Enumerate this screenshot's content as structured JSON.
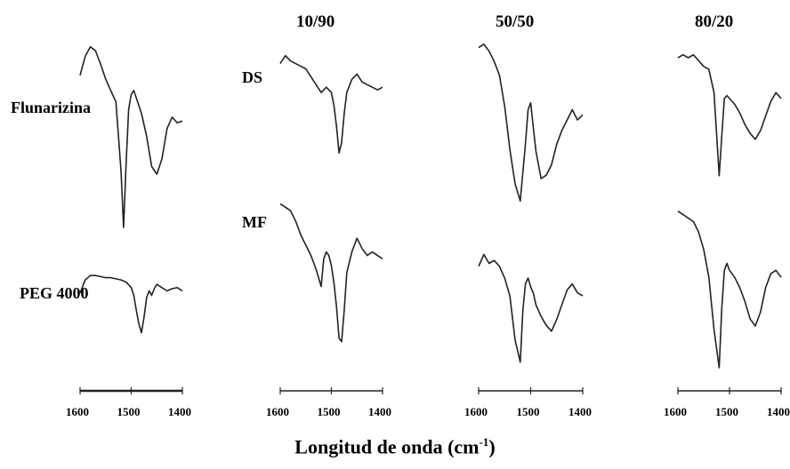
{
  "col_headers": [
    "10/90",
    "50/50",
    "80/20"
  ],
  "row_labels": {
    "flunarizina": "Flunarizina",
    "peg": "PEG 4000",
    "ds": "DS",
    "mf": "MF"
  },
  "x_axis": {
    "title_main": "Longitud de onda (cm",
    "title_exp": "-1",
    "title_close": ")"
  },
  "chart_data": {
    "type": "line",
    "x_axis_title": "Longitud de onda (cm-1)",
    "xlim": [
      1600,
      1400
    ],
    "x_ticks": [
      1600,
      1500,
      1400
    ],
    "y_axis": "not shown",
    "grid": false,
    "panels": [
      {
        "column": "",
        "series": [
          {
            "name": "Flunarizina",
            "x": [
              1600,
              1590,
              1580,
              1570,
              1560,
              1550,
              1540,
              1530,
              1520,
              1515,
              1510,
              1505,
              1500,
              1495,
              1490,
              1480,
              1470,
              1460,
              1450,
              1440,
              1430,
              1420,
              1410,
              1400
            ],
            "y": [
              0.8,
              0.9,
              0.95,
              0.93,
              0.86,
              0.78,
              0.72,
              0.66,
              0.3,
              0.0,
              0.34,
              0.62,
              0.7,
              0.72,
              0.68,
              0.6,
              0.48,
              0.32,
              0.28,
              0.36,
              0.52,
              0.58,
              0.55,
              0.56
            ]
          },
          {
            "name": "PEG 4000",
            "x": [
              1600,
              1590,
              1580,
              1570,
              1560,
              1550,
              1540,
              1530,
              1520,
              1510,
              1500,
              1495,
              1490,
              1485,
              1480,
              1475,
              1470,
              1465,
              1460,
              1455,
              1450,
              1440,
              1430,
              1420,
              1410,
              1400
            ],
            "y": [
              0.5,
              0.62,
              0.66,
              0.66,
              0.65,
              0.64,
              0.64,
              0.63,
              0.62,
              0.6,
              0.55,
              0.48,
              0.34,
              0.22,
              0.14,
              0.28,
              0.46,
              0.52,
              0.48,
              0.54,
              0.58,
              0.55,
              0.52,
              0.54,
              0.55,
              0.52
            ]
          }
        ]
      },
      {
        "column": "10/90",
        "series": [
          {
            "name": "DS",
            "x": [
              1600,
              1590,
              1580,
              1570,
              1560,
              1550,
              1540,
              1530,
              1520,
              1510,
              1500,
              1495,
              1490,
              1485,
              1480,
              1475,
              1470,
              1460,
              1450,
              1440,
              1430,
              1420,
              1410,
              1400
            ],
            "y": [
              0.8,
              0.86,
              0.82,
              0.8,
              0.78,
              0.76,
              0.7,
              0.64,
              0.58,
              0.62,
              0.58,
              0.48,
              0.32,
              0.12,
              0.2,
              0.42,
              0.58,
              0.68,
              0.72,
              0.66,
              0.64,
              0.62,
              0.6,
              0.62
            ]
          },
          {
            "name": "MF",
            "x": [
              1600,
              1590,
              1580,
              1570,
              1560,
              1550,
              1540,
              1530,
              1520,
              1515,
              1510,
              1505,
              1500,
              1495,
              1490,
              1485,
              1480,
              1475,
              1470,
              1460,
              1450,
              1440,
              1430,
              1420,
              1410,
              1400
            ],
            "y": [
              0.9,
              0.88,
              0.86,
              0.8,
              0.72,
              0.66,
              0.6,
              0.52,
              0.42,
              0.58,
              0.62,
              0.6,
              0.54,
              0.44,
              0.3,
              0.12,
              0.1,
              0.28,
              0.5,
              0.62,
              0.7,
              0.64,
              0.6,
              0.62,
              0.6,
              0.58
            ]
          }
        ]
      },
      {
        "column": "50/50",
        "series": [
          {
            "name": "DS",
            "x": [
              1600,
              1590,
              1580,
              1570,
              1560,
              1550,
              1540,
              1530,
              1520,
              1510,
              1505,
              1500,
              1495,
              1490,
              1480,
              1470,
              1460,
              1450,
              1440,
              1430,
              1420,
              1410,
              1400
            ],
            "y": [
              0.94,
              0.96,
              0.92,
              0.86,
              0.78,
              0.6,
              0.35,
              0.15,
              0.05,
              0.38,
              0.58,
              0.62,
              0.48,
              0.34,
              0.18,
              0.2,
              0.26,
              0.38,
              0.46,
              0.52,
              0.58,
              0.52,
              0.55
            ]
          },
          {
            "name": "MF",
            "x": [
              1600,
              1590,
              1580,
              1570,
              1560,
              1550,
              1540,
              1530,
              1520,
              1515,
              1510,
              1505,
              1500,
              1495,
              1490,
              1480,
              1470,
              1460,
              1450,
              1440,
              1430,
              1420,
              1410,
              1400
            ],
            "y": [
              0.7,
              0.78,
              0.72,
              0.74,
              0.7,
              0.62,
              0.5,
              0.2,
              0.05,
              0.4,
              0.58,
              0.62,
              0.56,
              0.52,
              0.44,
              0.36,
              0.3,
              0.26,
              0.34,
              0.44,
              0.54,
              0.58,
              0.52,
              0.5
            ]
          }
        ]
      },
      {
        "column": "80/20",
        "series": [
          {
            "name": "DS",
            "x": [
              1600,
              1590,
              1580,
              1570,
              1560,
              1550,
              1540,
              1530,
              1520,
              1515,
              1510,
              1505,
              1500,
              1490,
              1480,
              1470,
              1460,
              1450,
              1440,
              1430,
              1420,
              1410,
              1400
            ],
            "y": [
              0.86,
              0.88,
              0.86,
              0.88,
              0.84,
              0.8,
              0.78,
              0.62,
              0.05,
              0.32,
              0.58,
              0.6,
              0.58,
              0.54,
              0.48,
              0.4,
              0.34,
              0.3,
              0.36,
              0.46,
              0.56,
              0.62,
              0.58
            ]
          },
          {
            "name": "MF",
            "x": [
              1600,
              1590,
              1580,
              1570,
              1560,
              1550,
              1540,
              1530,
              1520,
              1515,
              1510,
              1505,
              1500,
              1490,
              1480,
              1470,
              1460,
              1450,
              1440,
              1430,
              1420,
              1410,
              1400
            ],
            "y": [
              0.92,
              0.9,
              0.88,
              0.86,
              0.8,
              0.7,
              0.54,
              0.24,
              0.02,
              0.36,
              0.58,
              0.62,
              0.58,
              0.54,
              0.48,
              0.4,
              0.3,
              0.26,
              0.34,
              0.48,
              0.56,
              0.58,
              0.54
            ]
          }
        ]
      }
    ]
  }
}
